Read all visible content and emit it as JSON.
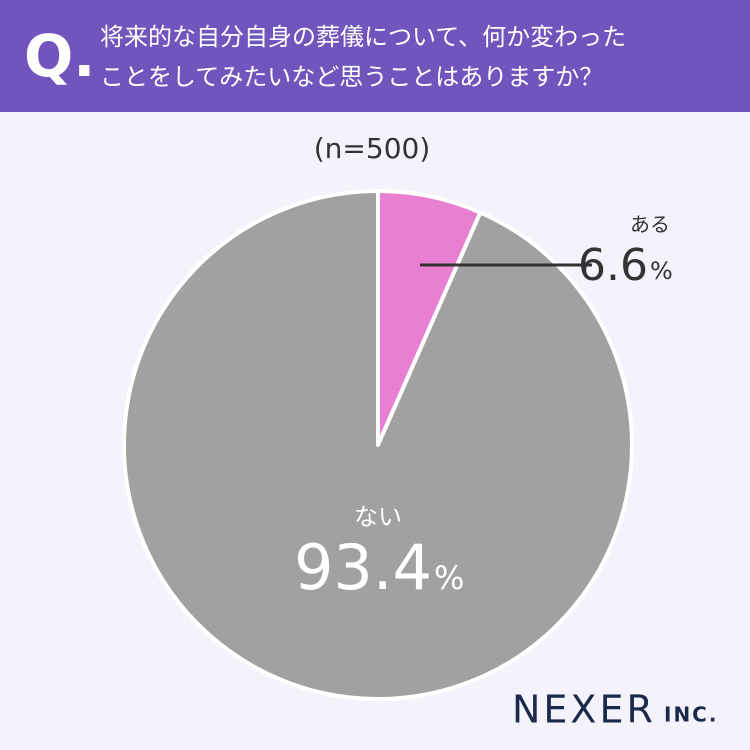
{
  "chart_data": {
    "type": "pie",
    "question_mark": "Q.",
    "title": [
      "将来的な自分自身の葬儀について、何か変わった",
      "ことをしてみたいなど思うことはありますか？"
    ],
    "subtitle": "(n=500)",
    "categories": [
      "ある",
      "ない"
    ],
    "values": [
      6.6,
      93.4
    ],
    "value_suffix": "%",
    "colors": [
      "#e87fd1",
      "#a1a1a1"
    ],
    "logo": "NEXER",
    "logo_suffix": "INC."
  }
}
